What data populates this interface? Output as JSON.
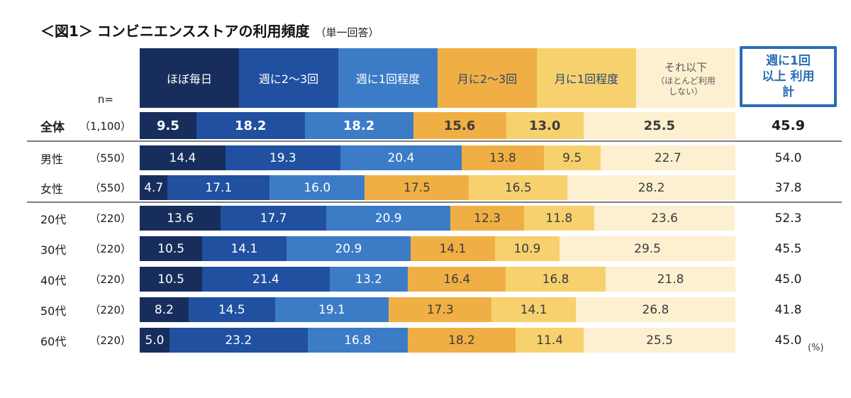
{
  "title": {
    "figure": "＜図1＞",
    "main": "コンビニエンスストアの利用頻度",
    "suffix": "（単一回答）"
  },
  "n_label": "n=",
  "unit_note": "(%)",
  "chart_data": {
    "type": "bar",
    "variant": "horizontal-stacked-100",
    "unit": "%",
    "title": "コンビニエンスストアの利用頻度（単一回答）",
    "legend_position": "top",
    "legend": [
      {
        "label": "ほぼ毎日",
        "color": "#172E5D",
        "text_color": "#FFFFFF"
      },
      {
        "label": "週に2〜3回",
        "color": "#20509F",
        "text_color": "#FFFFFF"
      },
      {
        "label": "週に1回程度",
        "color": "#3C7CC7",
        "text_color": "#FFFFFF"
      },
      {
        "label": "月に2〜3回",
        "color": "#F0AF44",
        "text_color": "#2C4770"
      },
      {
        "label": "月に1回程度",
        "color": "#F6D16E",
        "text_color": "#2C4770"
      },
      {
        "label": "それ以下",
        "sub": "（ほとんど利用\nしない）",
        "color": "#FCF0D0",
        "text_color": "#5A5A5A"
      }
    ],
    "value_text_colors": [
      "#FFFFFF",
      "#FFFFFF",
      "#FFFFFF",
      "#3C3C3C",
      "#3C3C3C",
      "#3C3C3C"
    ],
    "total_column": {
      "label": "週に1回\n以上 利用\n計",
      "accent_color": "#2A6CB5"
    },
    "rows": [
      {
        "label": "全体",
        "n": "（1,100）",
        "values": [
          9.5,
          18.2,
          18.2,
          15.6,
          13.0,
          25.5
        ],
        "total": 45.9,
        "emphasis": true
      },
      {
        "label": "男性",
        "n": "（550）",
        "values": [
          14.4,
          19.3,
          20.4,
          13.8,
          9.5,
          22.7
        ],
        "total": 54.0,
        "emphasis": false
      },
      {
        "label": "女性",
        "n": "（550）",
        "values": [
          4.7,
          17.1,
          16.0,
          17.5,
          16.5,
          28.2
        ],
        "total": 37.8,
        "emphasis": false
      },
      {
        "label": "20代",
        "n": "（220）",
        "values": [
          13.6,
          17.7,
          20.9,
          12.3,
          11.8,
          23.6
        ],
        "total": 52.3,
        "emphasis": false
      },
      {
        "label": "30代",
        "n": "（220）",
        "values": [
          10.5,
          14.1,
          20.9,
          14.1,
          10.9,
          29.5
        ],
        "total": 45.5,
        "emphasis": false
      },
      {
        "label": "40代",
        "n": "（220）",
        "values": [
          10.5,
          21.4,
          13.2,
          16.4,
          16.8,
          21.8
        ],
        "total": 45.0,
        "emphasis": false
      },
      {
        "label": "50代",
        "n": "（220）",
        "values": [
          8.2,
          14.5,
          19.1,
          17.3,
          14.1,
          26.8
        ],
        "total": 41.8,
        "emphasis": false
      },
      {
        "label": "60代",
        "n": "（220）",
        "values": [
          5.0,
          23.2,
          16.8,
          18.2,
          11.4,
          25.5
        ],
        "total": 45.0,
        "emphasis": false
      }
    ]
  }
}
